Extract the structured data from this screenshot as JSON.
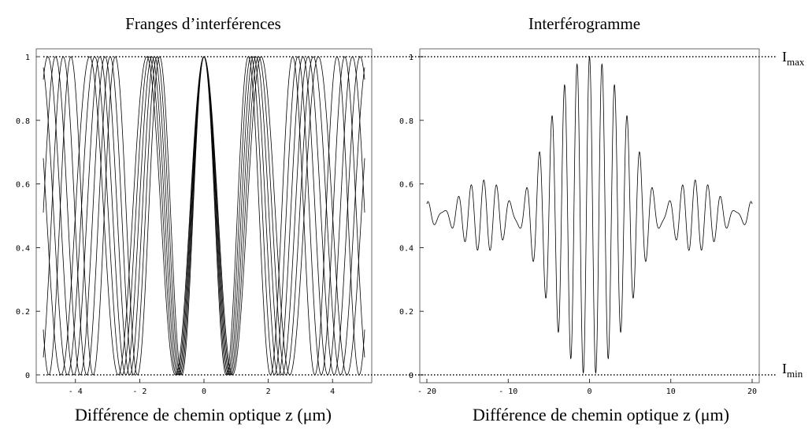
{
  "chart_data": [
    {
      "type": "line",
      "title": "Franges d’interférences",
      "xlabel": "Différence de chemin optique z (μm)",
      "ylabel": "",
      "xlim": [
        -5,
        5
      ],
      "ylim": [
        0,
        1
      ],
      "xticks": [
        -4,
        -2,
        0,
        2,
        4
      ],
      "xtick_labels": [
        "- 4",
        "- 2",
        "0",
        "2",
        "4"
      ],
      "yticks": [
        0,
        0.2,
        0.4,
        0.6,
        0.8,
        1
      ],
      "ytick_labels": [
        "0",
        "0.2",
        "0.4",
        "0.6",
        "0.8",
        "1"
      ],
      "grid": false,
      "curve": "0.5*(1+cos(2*pi*x/wavelength))",
      "series": [
        {
          "wavelength": 1.38
        },
        {
          "wavelength": 1.46
        },
        {
          "wavelength": 1.54
        },
        {
          "wavelength": 1.62
        },
        {
          "wavelength": 1.7
        },
        {
          "wavelength": 1.78
        }
      ]
    },
    {
      "type": "line",
      "title": "Interférogramme",
      "xlabel": "Différence de chemin optique z (μm)",
      "ylabel": "",
      "xlim": [
        -20,
        20
      ],
      "ylim": [
        0,
        1
      ],
      "xticks": [
        -20,
        -10,
        0,
        10,
        20
      ],
      "xtick_labels": [
        "- 20",
        "- 10",
        "0",
        "10",
        "20"
      ],
      "yticks": [
        0,
        0.2,
        0.4,
        0.6,
        0.8,
        1
      ],
      "ytick_labels": [
        "0",
        "0.2",
        "0.4",
        "0.6",
        "0.8",
        "1"
      ],
      "grid": false,
      "curve": "average of the fringe curves",
      "fringe_wavelengths": [
        1.42,
        1.44,
        1.46,
        1.48,
        1.5,
        1.52,
        1.54,
        1.56,
        1.58,
        1.6,
        1.62,
        1.64,
        1.66
      ]
    }
  ],
  "reference_lines": {
    "max": {
      "main": "I",
      "sub": "max",
      "value": 1
    },
    "min": {
      "main": "I",
      "sub": "min",
      "value": 0
    }
  }
}
